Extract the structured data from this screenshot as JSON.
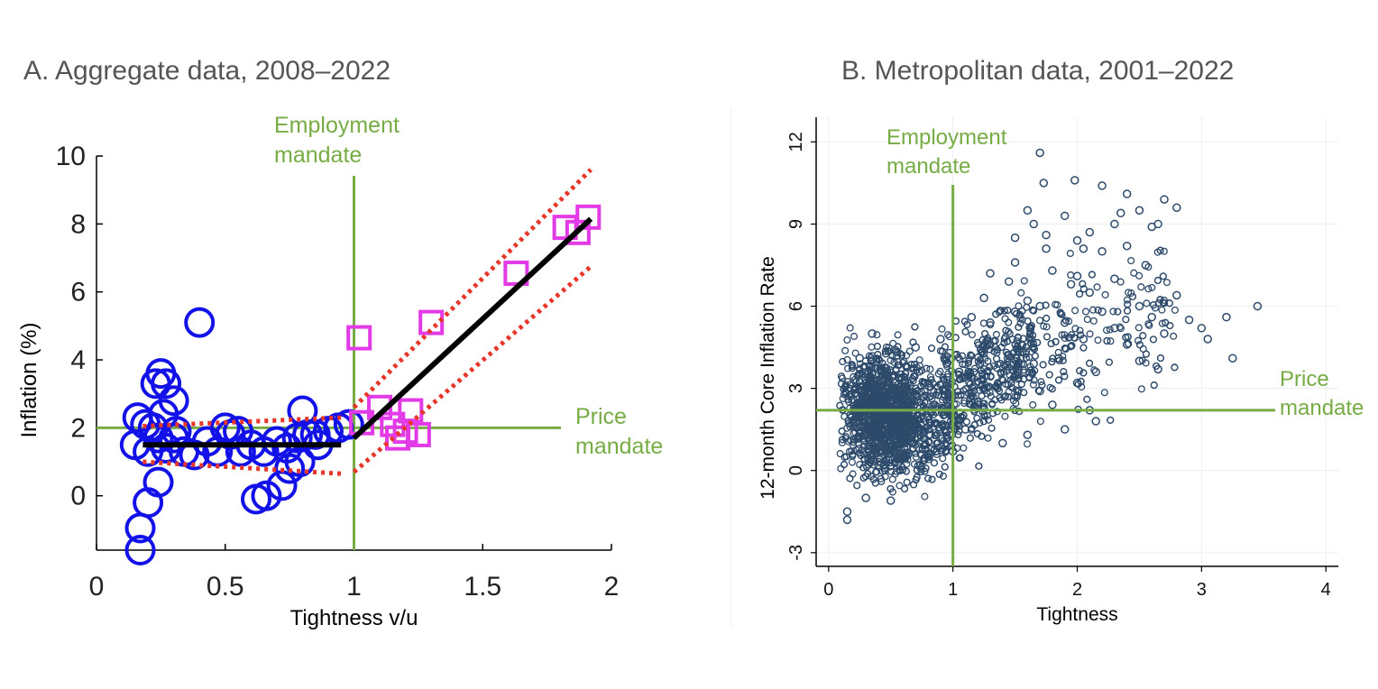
{
  "panels": {
    "a_title": "A. Aggregate data, 2008–2022",
    "b_title": "B. Metropolitan data, 2001–2022"
  },
  "colors": {
    "green": "#77ac45",
    "blue": "#1212e8",
    "magenta": "#e23ae6",
    "red": "#e8352a",
    "black": "#000000",
    "navy": "#2d4a6b"
  },
  "chart_data": [
    {
      "type": "scatter",
      "title": "A. Aggregate data, 2008–2022",
      "xlabel": "Tightness v/u",
      "ylabel": "Inflation (%)",
      "xlim": [
        0,
        2
      ],
      "ylim": [
        -1.6,
        10
      ],
      "xticks": [
        0,
        0.5,
        1,
        1.5,
        2
      ],
      "xtick_labels": [
        "0",
        "0.5",
        "1",
        "1.5",
        "2"
      ],
      "yticks": [
        0,
        2,
        4,
        6,
        8,
        10
      ],
      "ytick_labels": [
        "0",
        "2",
        "4",
        "6",
        "8",
        "10"
      ],
      "grid": false,
      "reference_lines": {
        "employment_x": 1,
        "price_y": 2,
        "employment_label": [
          "Employment",
          "mandate"
        ],
        "price_label": [
          "Price",
          "mandate"
        ]
      },
      "series": [
        {
          "marker": "circle",
          "color": "#1212e8",
          "points": [
            [
              0.17,
              -1.6
            ],
            [
              0.17,
              -0.95
            ],
            [
              0.2,
              -0.2
            ],
            [
              0.24,
              0.4
            ],
            [
              0.15,
              1.5
            ],
            [
              0.2,
              1.3
            ],
            [
              0.24,
              1.7
            ],
            [
              0.27,
              1.4
            ],
            [
              0.3,
              1.7
            ],
            [
              0.34,
              1.3
            ],
            [
              0.38,
              1.2
            ],
            [
              0.43,
              1.6
            ],
            [
              0.47,
              1.3
            ],
            [
              0.52,
              1.8
            ],
            [
              0.56,
              1.3
            ],
            [
              0.6,
              1.5
            ],
            [
              0.65,
              1.3
            ],
            [
              0.7,
              1.6
            ],
            [
              0.74,
              1.4
            ],
            [
              0.78,
              1.7
            ],
            [
              0.82,
              1.8
            ],
            [
              0.86,
              1.5
            ],
            [
              0.9,
              1.9
            ],
            [
              0.94,
              2.0
            ],
            [
              0.98,
              2.1
            ],
            [
              0.16,
              2.3
            ],
            [
              0.19,
              2.1
            ],
            [
              0.22,
              2.0
            ],
            [
              0.25,
              3.6
            ],
            [
              0.23,
              3.3
            ],
            [
              0.27,
              3.3
            ],
            [
              0.3,
              2.8
            ],
            [
              0.26,
              2.4
            ],
            [
              0.31,
              1.9
            ],
            [
              0.5,
              2.0
            ],
            [
              0.55,
              1.9
            ],
            [
              0.8,
              2.5
            ],
            [
              0.4,
              5.1
            ],
            [
              0.62,
              -0.1
            ],
            [
              0.66,
              0.0
            ],
            [
              0.72,
              0.3
            ],
            [
              0.75,
              0.8
            ],
            [
              0.79,
              1.0
            ],
            [
              0.85,
              1.8
            ]
          ]
        },
        {
          "marker": "square",
          "color": "#e23ae6",
          "points": [
            [
              1.02,
              4.65
            ],
            [
              1.03,
              2.15
            ],
            [
              1.1,
              2.6
            ],
            [
              1.15,
              2.1
            ],
            [
              1.17,
              1.7
            ],
            [
              1.2,
              1.9
            ],
            [
              1.22,
              2.5
            ],
            [
              1.25,
              1.8
            ],
            [
              1.3,
              5.1
            ],
            [
              1.63,
              6.55
            ],
            [
              1.82,
              7.9
            ],
            [
              1.87,
              7.75
            ],
            [
              1.91,
              8.2
            ]
          ]
        }
      ],
      "fit_segments": [
        {
          "x": [
            0.18,
            0.95
          ],
          "y": [
            1.5,
            1.5
          ]
        },
        {
          "x": [
            1.0,
            1.92
          ],
          "y": [
            1.7,
            8.15
          ]
        }
      ],
      "ci_segments": [
        {
          "x": [
            0.18,
            0.95
          ],
          "y": [
            2.05,
            2.3
          ]
        },
        {
          "x": [
            0.18,
            0.95
          ],
          "y": [
            1.0,
            0.65
          ]
        },
        {
          "x": [
            1.0,
            1.92
          ],
          "y": [
            2.6,
            9.6
          ]
        },
        {
          "x": [
            1.0,
            1.92
          ],
          "y": [
            0.7,
            6.75
          ]
        }
      ]
    },
    {
      "type": "scatter",
      "title": "B. Metropolitan data, 2001–2022",
      "xlabel": "Tightness",
      "ylabel": "12-month Core Inflation Rate",
      "xlim": [
        -0.1,
        4.1
      ],
      "ylim": [
        -3.5,
        12.9
      ],
      "xticks": [
        0,
        1,
        2,
        3,
        4
      ],
      "xtick_labels": [
        "0",
        "1",
        "2",
        "3",
        "4"
      ],
      "yticks": [
        -3,
        0,
        3,
        6,
        9,
        12
      ],
      "ytick_labels": [
        "-3",
        "0",
        "3",
        "6",
        "9",
        "12"
      ],
      "grid": true,
      "marker": "hollow-circle",
      "color": "#2d4a6b",
      "reference_lines": {
        "employment_x": 1,
        "price_y": 2.2,
        "employment_label": [
          "Employment",
          "mandate"
        ],
        "price_label": [
          "Price",
          "mandate"
        ]
      },
      "points": [
        [
          1.7,
          11.6
        ],
        [
          1.98,
          10.6
        ],
        [
          1.73,
          10.5
        ],
        [
          2.2,
          10.4
        ],
        [
          2.4,
          10.1
        ],
        [
          1.6,
          9.5
        ],
        [
          2.5,
          9.5
        ],
        [
          2.7,
          9.9
        ],
        [
          2.8,
          9.6
        ],
        [
          1.9,
          9.3
        ],
        [
          2.3,
          9.0
        ],
        [
          2.1,
          8.7
        ],
        [
          2.6,
          8.9
        ],
        [
          1.5,
          8.5
        ],
        [
          1.75,
          8.1
        ],
        [
          2.0,
          8.4
        ],
        [
          2.2,
          8.0
        ],
        [
          2.4,
          8.2
        ],
        [
          1.3,
          7.2
        ],
        [
          1.5,
          7.6
        ],
        [
          1.8,
          7.3
        ],
        [
          2.0,
          7.1
        ],
        [
          2.3,
          7.0
        ],
        [
          2.55,
          7.5
        ],
        [
          1.25,
          6.3
        ],
        [
          1.6,
          6.2
        ],
        [
          1.95,
          6.8
        ],
        [
          2.1,
          6.5
        ],
        [
          2.5,
          6.0
        ],
        [
          2.8,
          6.4
        ],
        [
          2.2,
          5.8
        ],
        [
          2.6,
          5.6
        ],
        [
          2.9,
          5.5
        ],
        [
          3.2,
          5.6
        ],
        [
          3.45,
          6.0
        ],
        [
          3.0,
          5.2
        ],
        [
          1.3,
          5.4
        ],
        [
          1.5,
          5.8
        ],
        [
          1.7,
          6.0
        ],
        [
          1.9,
          5.4
        ],
        [
          2.3,
          5.2
        ],
        [
          2.7,
          5.0
        ],
        [
          2.05,
          4.8
        ],
        [
          2.4,
          4.6
        ],
        [
          2.5,
          4.0
        ],
        [
          2.65,
          3.7
        ],
        [
          3.25,
          4.1
        ],
        [
          1.85,
          4.1
        ],
        [
          2.15,
          3.6
        ],
        [
          1.65,
          3.9
        ],
        [
          2.0,
          3.2
        ],
        [
          1.8,
          2.4
        ],
        [
          2.1,
          2.2
        ],
        [
          2.15,
          1.8
        ],
        [
          1.9,
          1.5
        ],
        [
          1.6,
          1.3
        ],
        [
          1.4,
          1.0
        ],
        [
          1.7,
          2.9
        ],
        [
          1.2,
          2.5
        ],
        [
          1.1,
          1.5
        ],
        [
          1.05,
          3.6
        ],
        [
          1.3,
          4.6
        ],
        [
          1.45,
          4.2
        ],
        [
          1.15,
          3.4
        ],
        [
          1.0,
          0.7
        ],
        [
          0.8,
          0.6
        ],
        [
          0.15,
          -1.5
        ],
        [
          0.15,
          -1.8
        ],
        [
          0.3,
          -1.0
        ],
        [
          0.5,
          -1.1
        ],
        [
          0.4,
          0.2
        ],
        [
          0.35,
          5.0
        ],
        [
          0.7,
          4.5
        ],
        [
          0.9,
          4.8
        ],
        [
          0.55,
          4.2
        ],
        [
          0.25,
          4.1
        ],
        [
          1.75,
          8.6
        ],
        [
          2.35,
          9.4
        ],
        [
          2.65,
          9.0
        ],
        [
          1.65,
          9.0
        ],
        [
          2.05,
          8.1
        ],
        [
          1.45,
          6.9
        ],
        [
          1.15,
          5.6
        ],
        [
          0.95,
          3.9
        ],
        [
          3.05,
          4.8
        ]
      ]
    }
  ]
}
